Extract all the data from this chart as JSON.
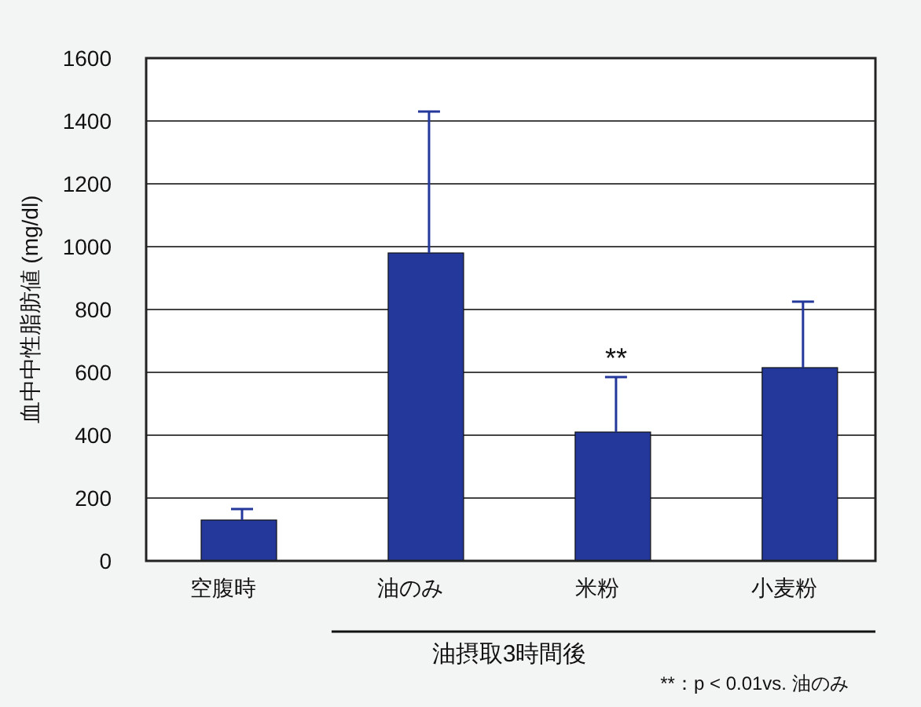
{
  "chart_data": {
    "type": "bar",
    "ylabel": "血中中性脂肪値 (mg/dl)",
    "categories": [
      "空腹時",
      "油のみ",
      "米粉",
      "小麦粉"
    ],
    "series": [
      {
        "color": "#24379a",
        "values": [
          130,
          980,
          410,
          615
        ],
        "errors": [
          [
            130,
            165
          ],
          [
            980,
            1430
          ],
          [
            410,
            585
          ],
          [
            615,
            825
          ]
        ]
      }
    ],
    "ylim": [
      0,
      1600
    ],
    "yticks": [
      0,
      200,
      400,
      600,
      800,
      1000,
      1200,
      1400,
      1600
    ],
    "grid": "y",
    "annotations": [
      {
        "text": "**",
        "x": "米粉",
        "y": 585
      },
      "油摂取3時間後",
      "**：p < 0.01vs. 油のみ"
    ]
  }
}
